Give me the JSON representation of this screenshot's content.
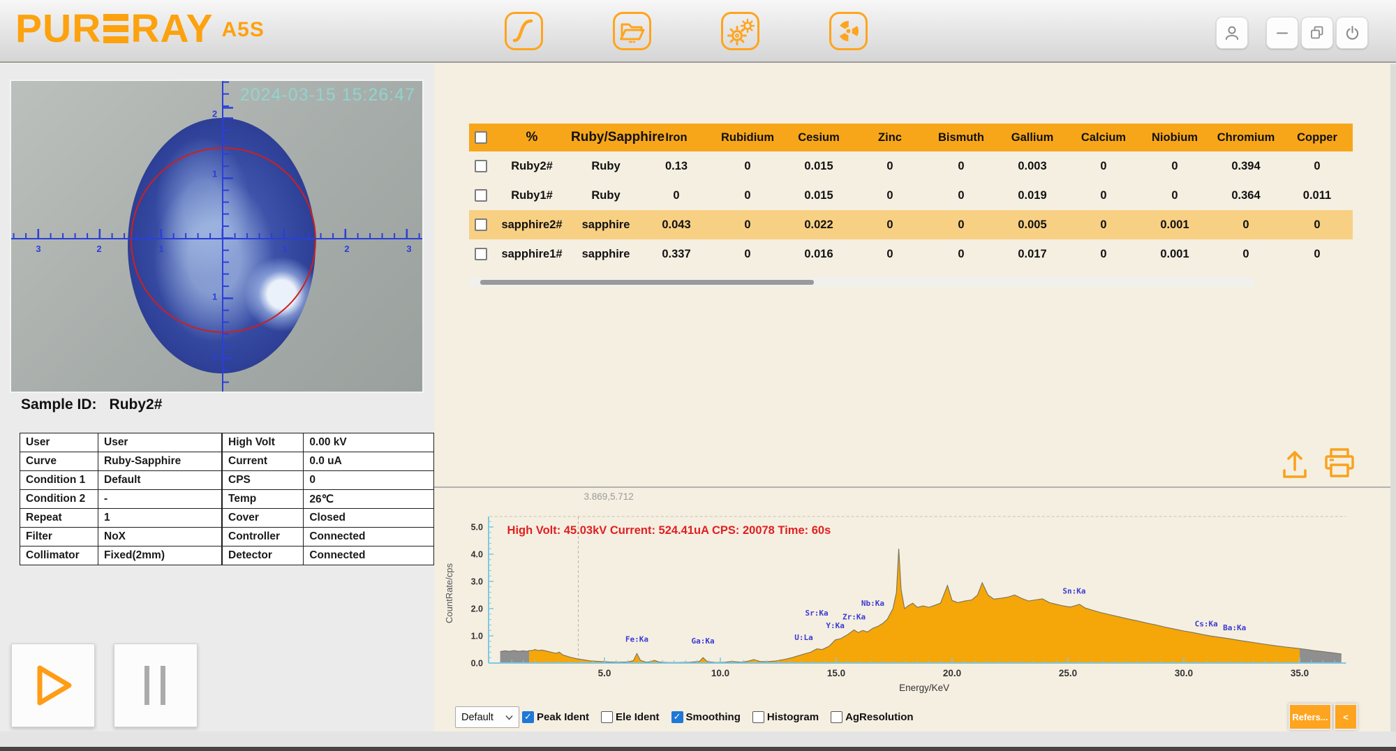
{
  "topbar": {
    "brand_left": "PUR",
    "brand_right": "RAY",
    "model": "A5S",
    "icons": [
      "curve",
      "open-folder",
      "settings-gears",
      "radiation"
    ],
    "window_controls": [
      "user",
      "minimize",
      "restore",
      "power"
    ]
  },
  "camera": {
    "timestamp": "2024-03-15 15:26:47",
    "h_ruler_labels": [
      "3",
      "2",
      "1",
      "1",
      "2",
      "3"
    ],
    "v_ruler_labels": [
      "2",
      "1",
      "1",
      "2"
    ]
  },
  "sample": {
    "label": "Sample ID:",
    "value": "Ruby2#"
  },
  "info_left": {
    "rows": [
      [
        "User",
        "User"
      ],
      [
        "Curve",
        "Ruby-Sapphire"
      ],
      [
        "Condition 1",
        "Default"
      ],
      [
        "Condition 2",
        "-"
      ],
      [
        "Repeat",
        "1"
      ],
      [
        "Filter",
        "NoX"
      ],
      [
        "Collimator",
        "Fixed(2mm)"
      ]
    ]
  },
  "info_right": {
    "rows": [
      [
        "High Volt",
        "0.00 kV"
      ],
      [
        "Current",
        "0.0 uA"
      ],
      [
        "CPS",
        "0"
      ],
      [
        "Temp",
        "26℃"
      ],
      [
        "Cover",
        "Closed"
      ],
      [
        "Controller",
        "Connected"
      ],
      [
        "Detector",
        "Connected"
      ]
    ]
  },
  "results_table": {
    "columns": [
      "%",
      "Ruby/Sapphire",
      "Iron",
      "Rubidium",
      "Cesium",
      "Zinc",
      "Bismuth",
      "Gallium",
      "Calcium",
      "Niobium",
      "Chromium",
      "Copper"
    ],
    "rows": [
      {
        "name": "Ruby2#",
        "type": "Ruby",
        "checked": false,
        "highlighted": false,
        "values": [
          "0.13",
          "0",
          "0.015",
          "0",
          "0",
          "0.003",
          "0",
          "0",
          "0.394",
          "0"
        ]
      },
      {
        "name": "Ruby1#",
        "type": "Ruby",
        "checked": false,
        "highlighted": false,
        "values": [
          "0",
          "0",
          "0.015",
          "0",
          "0",
          "0.019",
          "0",
          "0",
          "0.364",
          "0.011"
        ]
      },
      {
        "name": "sapphire2#",
        "type": "sapphire",
        "checked": false,
        "highlighted": true,
        "values": [
          "0.043",
          "0",
          "0.022",
          "0",
          "0",
          "0.005",
          "0",
          "0.001",
          "0",
          "0"
        ]
      },
      {
        "name": "sapphire1#",
        "type": "sapphire",
        "checked": false,
        "highlighted": false,
        "values": [
          "0.337",
          "0",
          "0.016",
          "0",
          "0",
          "0.017",
          "0",
          "0.001",
          "0",
          "0"
        ]
      }
    ]
  },
  "results_toolbar": {
    "icons": [
      "export",
      "print"
    ]
  },
  "chart_data": {
    "type": "area",
    "title": "",
    "xlabel": "Energy/KeV",
    "ylabel": "CountRate/cps",
    "xlim": [
      0,
      37
    ],
    "ylim": [
      0,
      5.4
    ],
    "x_ticks_major": [
      5,
      10,
      15,
      20,
      25,
      30,
      35
    ],
    "y_ticks_major": [
      0,
      1,
      2,
      3,
      4,
      5
    ],
    "grid": false,
    "legend": "none",
    "status_text": "High Volt: 45.03kV  Current: 524.41uA  CPS: 20078  Time: 60s",
    "cursor_label": "3.869,5.712",
    "cursor_x": 3.869,
    "series": [
      {
        "name": "spectrum-low-gray",
        "color": "#8f8f8f",
        "points": [
          [
            0.5,
            0.42
          ],
          [
            0.7,
            0.45
          ],
          [
            0.9,
            0.43
          ],
          [
            1.1,
            0.46
          ],
          [
            1.3,
            0.43
          ],
          [
            1.5,
            0.45
          ],
          [
            1.65,
            0.43
          ],
          [
            1.75,
            0.46
          ]
        ]
      },
      {
        "name": "spectrum-main",
        "color": "#f5a608",
        "points": [
          [
            1.75,
            0.46
          ],
          [
            1.9,
            0.46
          ],
          [
            2.0,
            0.5
          ],
          [
            2.15,
            0.46
          ],
          [
            2.3,
            0.48
          ],
          [
            2.5,
            0.44
          ],
          [
            2.7,
            0.4
          ],
          [
            2.9,
            0.36
          ],
          [
            3.05,
            0.4
          ],
          [
            3.2,
            0.3
          ],
          [
            3.5,
            0.22
          ],
          [
            3.8,
            0.16
          ],
          [
            4.1,
            0.12
          ],
          [
            4.4,
            0.08
          ],
          [
            4.8,
            0.06
          ],
          [
            5.2,
            0.04
          ],
          [
            5.6,
            0.03
          ],
          [
            6.0,
            0.04
          ],
          [
            6.25,
            0.09
          ],
          [
            6.4,
            0.35
          ],
          [
            6.55,
            0.1
          ],
          [
            6.8,
            0.03
          ],
          [
            7.0,
            0.05
          ],
          [
            7.15,
            0.1
          ],
          [
            7.35,
            0.04
          ],
          [
            7.7,
            0.02
          ],
          [
            8.2,
            0.02
          ],
          [
            8.7,
            0.03
          ],
          [
            9.1,
            0.06
          ],
          [
            9.25,
            0.2
          ],
          [
            9.45,
            0.05
          ],
          [
            9.8,
            0.02
          ],
          [
            10.2,
            0.03
          ],
          [
            10.5,
            0.06
          ],
          [
            10.9,
            0.03
          ],
          [
            11.2,
            0.07
          ],
          [
            11.45,
            0.13
          ],
          [
            11.7,
            0.06
          ],
          [
            12.0,
            0.05
          ],
          [
            12.4,
            0.08
          ],
          [
            12.8,
            0.14
          ],
          [
            13.1,
            0.2
          ],
          [
            13.4,
            0.28
          ],
          [
            13.6,
            0.33
          ],
          [
            13.9,
            0.4
          ],
          [
            14.16,
            0.52
          ],
          [
            14.4,
            0.5
          ],
          [
            14.7,
            0.62
          ],
          [
            14.96,
            0.85
          ],
          [
            15.2,
            0.9
          ],
          [
            15.5,
            1.05
          ],
          [
            15.77,
            1.22
          ],
          [
            15.95,
            1.12
          ],
          [
            16.15,
            1.2
          ],
          [
            16.35,
            1.14
          ],
          [
            16.58,
            1.28
          ],
          [
            16.8,
            1.35
          ],
          [
            17.0,
            1.45
          ],
          [
            17.2,
            1.6
          ],
          [
            17.45,
            2.0
          ],
          [
            17.6,
            2.6
          ],
          [
            17.7,
            4.2
          ],
          [
            17.8,
            2.7
          ],
          [
            17.95,
            2.0
          ],
          [
            18.1,
            2.1
          ],
          [
            18.3,
            2.2
          ],
          [
            18.5,
            2.05
          ],
          [
            18.75,
            2.1
          ],
          [
            19.0,
            2.05
          ],
          [
            19.25,
            2.12
          ],
          [
            19.5,
            2.2
          ],
          [
            19.8,
            2.85
          ],
          [
            20.0,
            2.3
          ],
          [
            20.25,
            2.22
          ],
          [
            20.55,
            2.28
          ],
          [
            20.85,
            2.32
          ],
          [
            21.1,
            2.5
          ],
          [
            21.3,
            2.95
          ],
          [
            21.55,
            2.5
          ],
          [
            21.8,
            2.35
          ],
          [
            22.1,
            2.38
          ],
          [
            22.4,
            2.42
          ],
          [
            22.7,
            2.5
          ],
          [
            23.0,
            2.38
          ],
          [
            23.3,
            2.28
          ],
          [
            23.6,
            2.32
          ],
          [
            23.9,
            2.36
          ],
          [
            24.2,
            2.22
          ],
          [
            24.5,
            2.16
          ],
          [
            24.8,
            2.1
          ],
          [
            25.1,
            2.06
          ],
          [
            25.27,
            2.1
          ],
          [
            25.5,
            2.16
          ],
          [
            25.75,
            2.02
          ],
          [
            26.0,
            1.96
          ],
          [
            26.4,
            1.86
          ],
          [
            26.8,
            1.78
          ],
          [
            27.2,
            1.7
          ],
          [
            27.6,
            1.62
          ],
          [
            28.0,
            1.55
          ],
          [
            28.4,
            1.47
          ],
          [
            28.8,
            1.4
          ],
          [
            29.2,
            1.32
          ],
          [
            29.6,
            1.25
          ],
          [
            30.0,
            1.18
          ],
          [
            30.4,
            1.12
          ],
          [
            30.8,
            1.05
          ],
          [
            31.2,
            0.99
          ],
          [
            31.6,
            0.94
          ],
          [
            32.0,
            0.89
          ],
          [
            32.4,
            0.83
          ],
          [
            32.8,
            0.78
          ],
          [
            33.2,
            0.73
          ],
          [
            33.6,
            0.68
          ],
          [
            34.0,
            0.63
          ],
          [
            34.4,
            0.59
          ],
          [
            34.8,
            0.55
          ],
          [
            35.0,
            0.53
          ]
        ]
      },
      {
        "name": "spectrum-high-gray",
        "color": "#8f8f8f",
        "points": [
          [
            35.0,
            0.53
          ],
          [
            35.3,
            0.5
          ],
          [
            35.6,
            0.46
          ],
          [
            36.0,
            0.42
          ],
          [
            36.4,
            0.38
          ],
          [
            36.8,
            0.33
          ]
        ]
      }
    ],
    "peak_labels": [
      {
        "text": "Fe:Ka",
        "x": 6.4,
        "y": 0.78
      },
      {
        "text": "Ga:Ka",
        "x": 9.25,
        "y": 0.72
      },
      {
        "text": "U:La",
        "x": 13.6,
        "y": 0.85
      },
      {
        "text": "Sr:Ka",
        "x": 14.16,
        "y": 1.75
      },
      {
        "text": "Y:Ka",
        "x": 14.96,
        "y": 1.28
      },
      {
        "text": "Zr:Ka",
        "x": 15.77,
        "y": 1.6
      },
      {
        "text": "Nb:Ka",
        "x": 16.58,
        "y": 2.1
      },
      {
        "text": "Sn:Ka",
        "x": 25.27,
        "y": 2.55
      },
      {
        "text": "Cs:Ka",
        "x": 30.97,
        "y": 1.35
      },
      {
        "text": "Ba:Ka",
        "x": 32.19,
        "y": 1.2
      }
    ]
  },
  "controls": {
    "display_mode": {
      "value": "Default"
    },
    "checkboxes": [
      {
        "label": "Peak Ident",
        "checked": true
      },
      {
        "label": "Ele Ident",
        "checked": false
      },
      {
        "label": "Smoothing",
        "checked": true
      },
      {
        "label": "Histogram",
        "checked": false
      },
      {
        "label": "AgResolution",
        "checked": false
      }
    ],
    "refers_label": "Refers...",
    "collapse_label": "<"
  },
  "colors": {
    "accent": "#FFA41E",
    "table_header": "#F7A61A",
    "row_highlight": "#F8D084",
    "spectrum_fill": "#F5A608",
    "spectrum_gray": "#8F8F8F",
    "axis": "#7EC8E3",
    "peak_label": "#3B3BD1",
    "status_text": "#E02020",
    "timestamp": "#8FD8D2"
  }
}
